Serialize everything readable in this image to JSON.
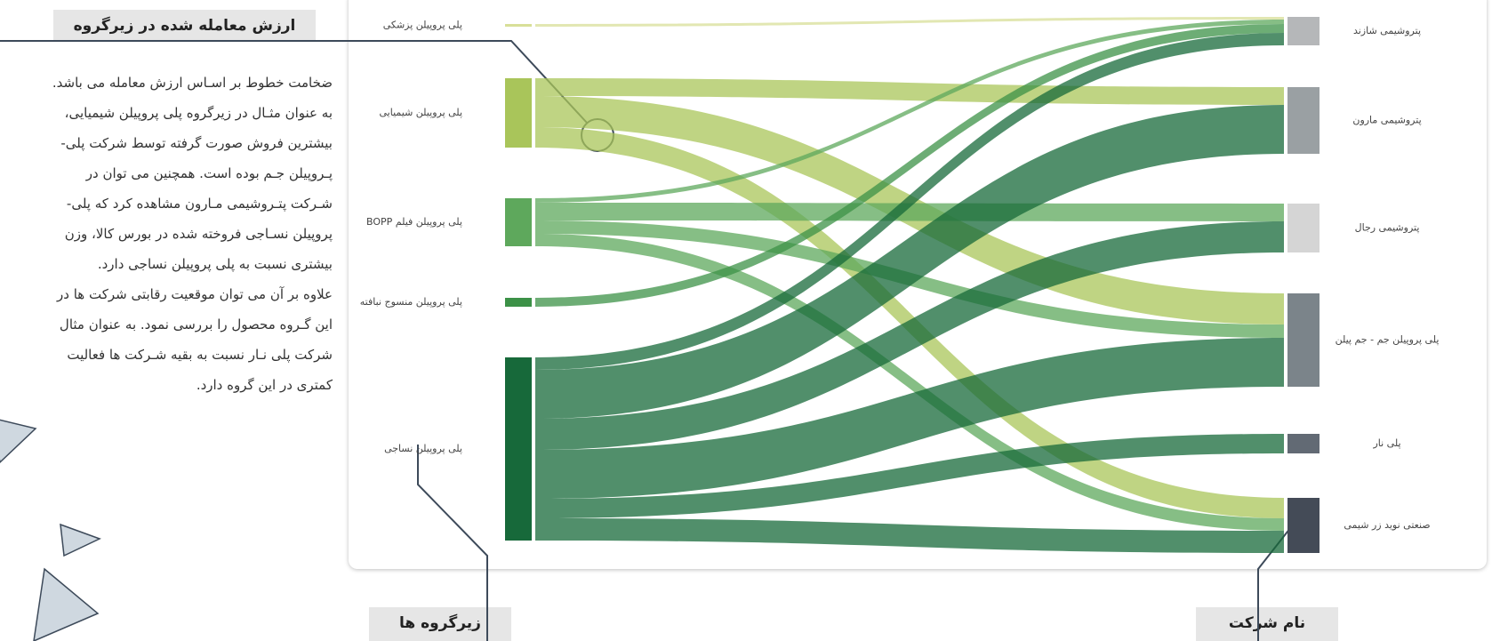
{
  "annotation": {
    "title": "ارزش معامله شده در زیرگروه",
    "lines": [
      "ضخامت خطوط بر اسـاس ارزش معامله می باشد.",
      "به عنوان مثـال در زیرگروه پلی پروپیلن شیمیایی،",
      "بیشترین فروش صورت گرفته توسط شرکت پلی-",
      "پـروپیلن جـم بوده است.  همچنین می توان در",
      "شـرکت پتـروشیمی مـارون مشاهده کرد که پلی-",
      "پروپیلن نسـاجی فروخته شده در بورس کالا، وزن",
      "بیشتری نسبت به پلی پروپیلن نساجی دارد.",
      "علاوه بر آن می توان موقعیت رقابتی شرکت ها در",
      "این گـروه محصول را بررسی نمود. به عنوان مثال",
      "شرکت پلی نـار نسبت به بقیه شـرکت ها فعالیت",
      "کمتری در این گروه دارد."
    ]
  },
  "footer": {
    "subgroups": "زیرگروه ها",
    "company": "نام شرکت"
  },
  "sources": [
    {
      "label": "پلی پروپیلن پزشکی",
      "color": "#d8df98"
    },
    {
      "label": "پلی پروپیلن شیمیایی",
      "color": "#a9c55a"
    },
    {
      "label": "پلی پروپیلن فیلم BOPP",
      "color": "#5ea85c"
    },
    {
      "label": "پلی پروپیلن منسوج نبافته",
      "color": "#3c9147"
    },
    {
      "label": "پلی پروپیلن نساجی",
      "color": "#17693a"
    }
  ],
  "targets": [
    {
      "label": "پتروشیمی شازند",
      "color": "#b5b7b9"
    },
    {
      "label": "پتروشیمی مارون",
      "color": "#9aa0a3"
    },
    {
      "label": "پتروشیمی رجال",
      "color": "#d5d5d5"
    },
    {
      "label": "پلی پروپیلن جم - جم پیلن",
      "color": "#7b848a"
    },
    {
      "label": "پلی نار",
      "color": "#626a74"
    },
    {
      "label": "صنعتی نوید زر شیمی",
      "color": "#444b57"
    }
  ],
  "links": [
    {
      "source": 0,
      "target": 0,
      "value": 3
    },
    {
      "source": 1,
      "target": 1,
      "value": 20
    },
    {
      "source": 1,
      "target": 3,
      "value": 35
    },
    {
      "source": 1,
      "target": 5,
      "value": 23
    },
    {
      "source": 2,
      "target": 2,
      "value": 20
    },
    {
      "source": 2,
      "target": 0,
      "value": 5
    },
    {
      "source": 2,
      "target": 3,
      "value": 15
    },
    {
      "source": 2,
      "target": 5,
      "value": 14
    },
    {
      "source": 3,
      "target": 0,
      "value": 10
    },
    {
      "source": 4,
      "target": 0,
      "value": 14
    },
    {
      "source": 4,
      "target": 1,
      "value": 55
    },
    {
      "source": 4,
      "target": 2,
      "value": 35
    },
    {
      "source": 4,
      "target": 3,
      "value": 55
    },
    {
      "source": 4,
      "target": 4,
      "value": 22
    },
    {
      "source": 4,
      "target": 5,
      "value": 25
    }
  ]
}
